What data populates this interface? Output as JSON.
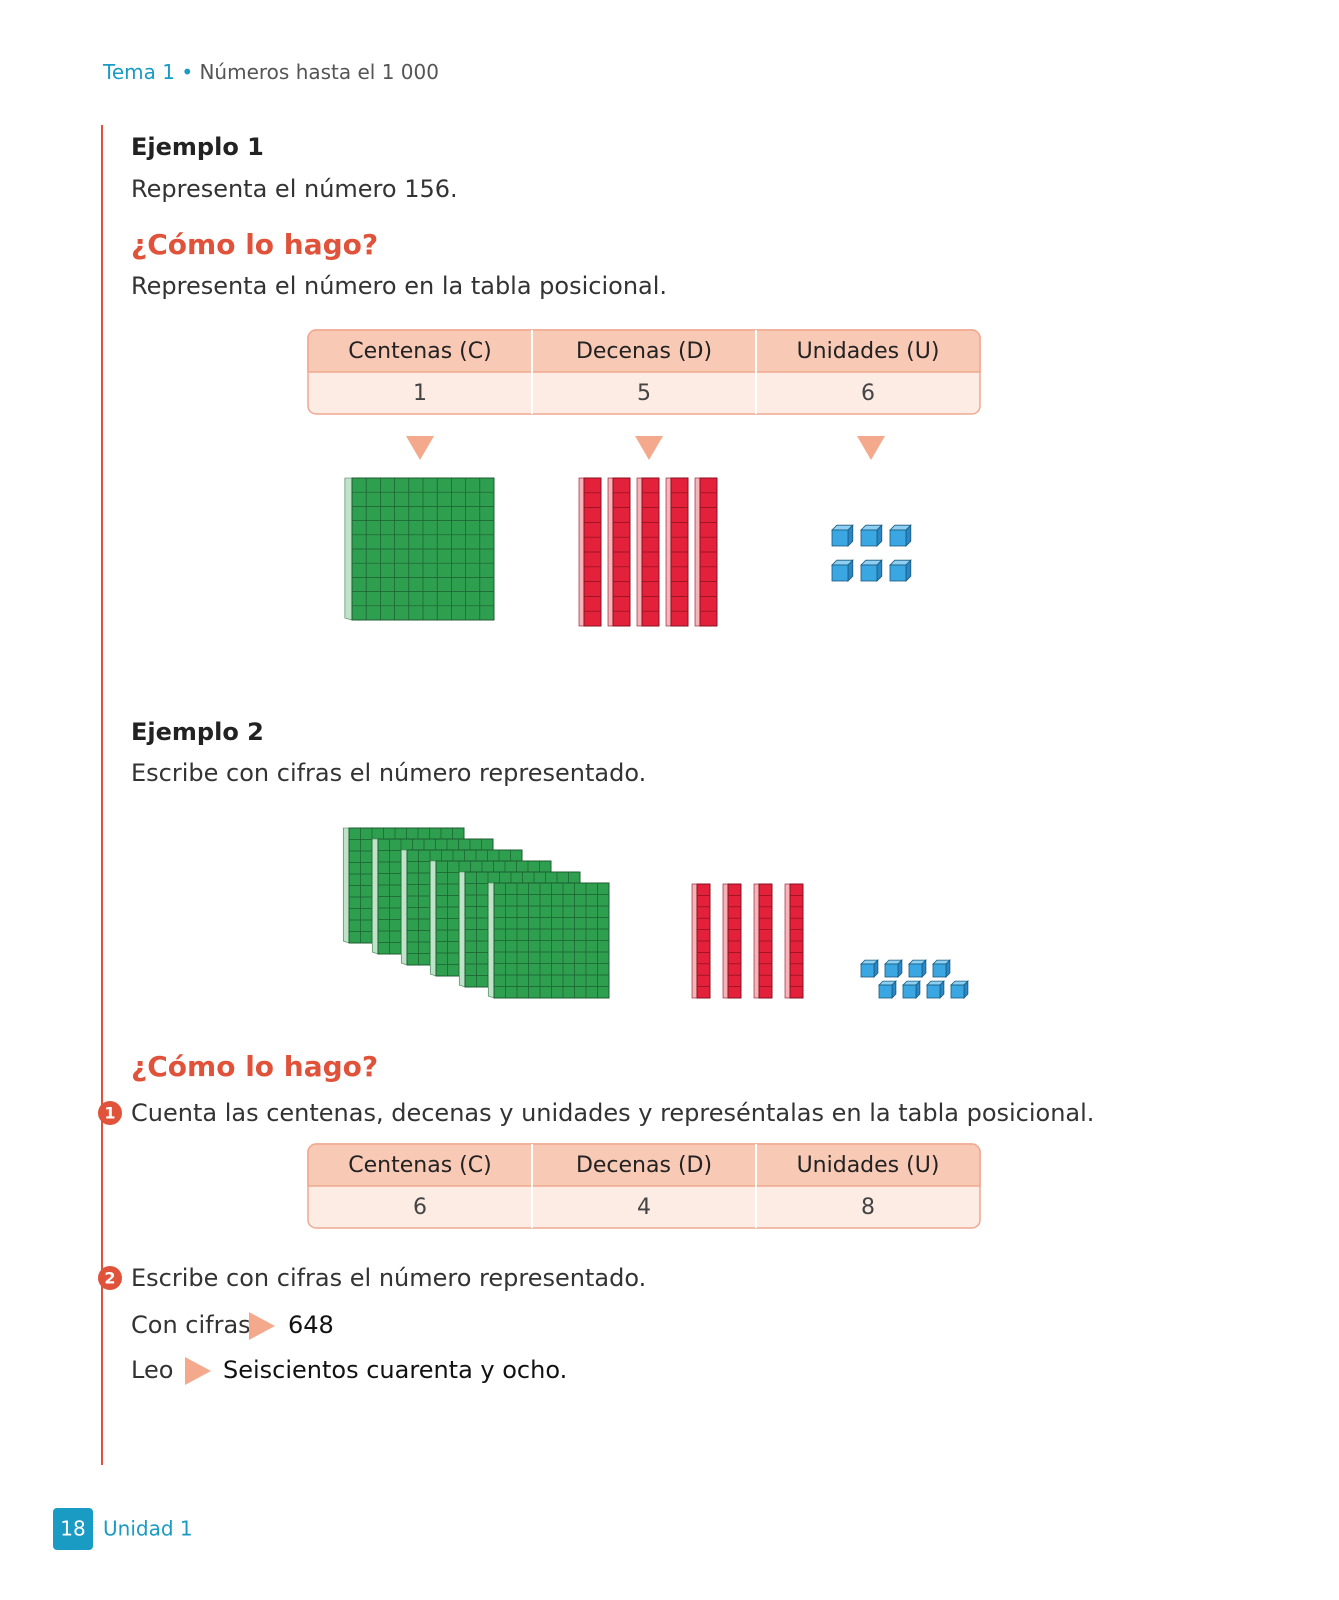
{
  "header": {
    "topic": "Tema 1",
    "separator": "•",
    "title": "Números hasta el 1 000"
  },
  "example1": {
    "title": "Ejemplo 1",
    "prompt": "Representa el número 156.",
    "how_heading": "¿Cómo lo hago?",
    "instruction": "Representa el número en la tabla posicional.",
    "table": {
      "headers": [
        "Centenas (C)",
        "Decenas (D)",
        "Unidades (U)"
      ],
      "values": [
        1,
        5,
        6
      ]
    }
  },
  "example2": {
    "title": "Ejemplo 2",
    "prompt": "Escribe con cifras el número representado.",
    "how_heading": "¿Cómo lo hago?",
    "steps": [
      {
        "number": 1,
        "text": "Cuenta las centenas, decenas y unidades y represéntalas en la tabla posicional."
      },
      {
        "number": 2,
        "text": "Escribe con cifras el número representado."
      }
    ],
    "table": {
      "headers": [
        "Centenas (C)",
        "Decenas (D)",
        "Unidades (U)"
      ],
      "values": [
        6,
        4,
        8
      ]
    },
    "digits_label": "Con cifras",
    "digits": 648,
    "read_label": "Leo",
    "reading": "Seiscientos cuarenta y ocho."
  },
  "footer": {
    "page": 18,
    "unit": "Unidad 1"
  }
}
